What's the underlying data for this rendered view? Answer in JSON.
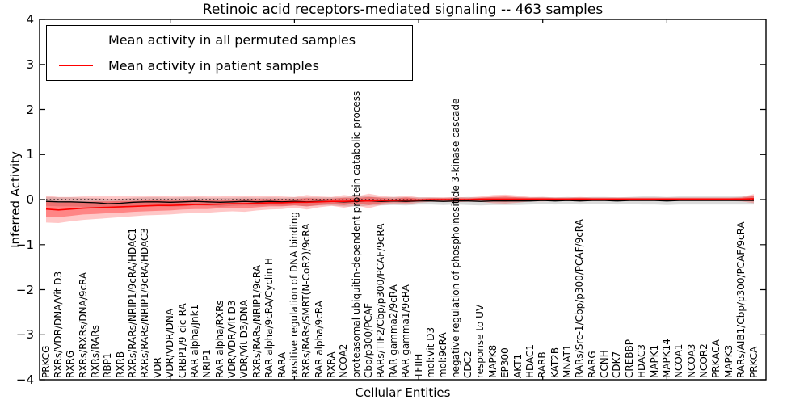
{
  "title": "Retinoic acid receptors-mediated signaling -- 463 samples",
  "axes": {
    "ylabel": "Inferred Activity",
    "xlabel": "Cellular Entities",
    "y_ticks": [
      "4",
      "3",
      "2",
      "1",
      "0",
      "−1",
      "−2",
      "−3",
      "−4"
    ],
    "y_tick_values": [
      4,
      3,
      2,
      1,
      0,
      -1,
      -2,
      -3,
      -4
    ],
    "ylim": [
      -4,
      4
    ]
  },
  "legend": {
    "items": [
      {
        "label": "Mean activity in all permuted samples",
        "color": "#000000"
      },
      {
        "label": "Mean activity in patient samples",
        "color": "#ff0000"
      }
    ],
    "position": "upper left"
  },
  "colors": {
    "permuted_line": "#000000",
    "patient_line": "#ff0000",
    "permuted_band": "#000000",
    "patient_band": "#ff0000",
    "zero_line": "#000000",
    "frame": "#000000"
  },
  "chart_data": {
    "type": "line",
    "title": "Retinoic acid receptors-mediated signaling -- 463 samples",
    "xlabel": "Cellular Entities",
    "ylabel": "Inferred Activity",
    "ylim": [
      -4,
      4
    ],
    "grid": false,
    "legend_position": "upper left",
    "zero_line_dotted": true,
    "categories": [
      "PRKCG",
      "RXRs/VDR/DNA/Vit D3",
      "RXRG",
      "RXRs/RXRs/DNA/9cRA",
      "RXRs/RARs",
      "RBP1",
      "RXRB",
      "RXRs/RARs/NRIP1/9cRA/HDAC1",
      "RXRs/RARs/NRIP1/9cRA/HDAC3",
      "VDR",
      "VDR/VDR/DNA",
      "CRBP1/9-cic-RA",
      "RAR alpha/Jnk1",
      "NRIP1",
      "RAR alpha/RXRs",
      "VDR/VDR/Vit D3",
      "VDR/Vit D3/DNA",
      "RXRs/RARs/NRIP1/9cRA",
      "RAR alpha/9cRA/Cyclin H",
      "RARA",
      "positive regulation of DNA binding",
      "RXRs/RARs/SMRT(N-CoR2)/9cRA",
      "RAR alpha/9cRA",
      "RXRA",
      "NCOA2",
      "proteasomal ubiquitin-dependent protein catabolic process",
      "Cbp/p300/PCAF",
      "RARs/TIF2/Cbp/p300/PCAF/9cRA",
      "RAR gamma2/9cRA",
      "RAR gamma1/9cRA",
      "TFIIH",
      "mol:Vit D3",
      "mol:9cRA",
      "negative regulation of phosphoinositide 3-kinase cascade",
      "CDC2",
      "response to UV",
      "MAPK8",
      "EP300",
      "AKT1",
      "HDAC1",
      "RARB",
      "KAT2B",
      "MNAT1",
      "RARs/Src-1/Cbp/p300/PCAF/9cRA",
      "RARG",
      "CCNH",
      "CDK7",
      "CREBBP",
      "HDAC3",
      "MAPK1",
      "MAPK14",
      "NCOA1",
      "NCOA3",
      "NCOR2",
      "PRKACA",
      "MAPK3",
      "RARs/AIB1/Cbp/p300/PCAF/9cRA",
      "PRKCA"
    ],
    "series": [
      {
        "name": "Mean activity in all permuted samples",
        "color": "#000000",
        "values": [
          -0.04,
          -0.05,
          -0.05,
          -0.06,
          -0.07,
          -0.09,
          -0.08,
          -0.06,
          -0.05,
          -0.05,
          -0.06,
          -0.05,
          -0.04,
          -0.05,
          -0.06,
          -0.05,
          -0.04,
          -0.05,
          -0.04,
          -0.05,
          -0.04,
          -0.05,
          -0.04,
          -0.04,
          -0.05,
          -0.04,
          -0.03,
          -0.04,
          -0.03,
          -0.04,
          -0.03,
          -0.03,
          -0.04,
          -0.03,
          -0.03,
          -0.04,
          -0.03,
          -0.03,
          -0.03,
          -0.03,
          -0.02,
          -0.03,
          -0.02,
          -0.03,
          -0.02,
          -0.02,
          -0.03,
          -0.02,
          -0.02,
          -0.02,
          -0.03,
          -0.02,
          -0.02,
          -0.02,
          -0.02,
          -0.02,
          -0.02,
          -0.02
        ]
      },
      {
        "name": "Mean activity in patient samples",
        "color": "#ff0000",
        "values": [
          -0.21,
          -0.23,
          -0.21,
          -0.19,
          -0.18,
          -0.17,
          -0.16,
          -0.15,
          -0.14,
          -0.13,
          -0.13,
          -0.12,
          -0.11,
          -0.11,
          -0.1,
          -0.09,
          -0.09,
          -0.08,
          -0.07,
          -0.07,
          -0.06,
          -0.06,
          -0.05,
          -0.04,
          -0.04,
          -0.03,
          -0.03,
          -0.02,
          -0.02,
          -0.01,
          -0.01,
          0.0,
          0.0,
          0.0,
          0.0,
          0.01,
          0.01,
          0.01,
          0.01,
          0.01,
          0.01,
          0.01,
          0.01,
          0.01,
          0.01,
          0.01,
          0.01,
          0.01,
          0.01,
          0.01,
          0.01,
          0.01,
          0.01,
          0.01,
          0.01,
          0.01,
          0.01,
          0.02
        ]
      }
    ],
    "bands": [
      {
        "name": "permuted-samples-spread",
        "center_series": 0,
        "color": "#000000",
        "opacity": 0.14,
        "half_widths": [
          0.1,
          0.1,
          0.1,
          0.1,
          0.1,
          0.11,
          0.1,
          0.1,
          0.1,
          0.1,
          0.1,
          0.1,
          0.09,
          0.09,
          0.1,
          0.09,
          0.09,
          0.09,
          0.09,
          0.09,
          0.09,
          0.1,
          0.09,
          0.09,
          0.1,
          0.12,
          0.1,
          0.09,
          0.09,
          0.09,
          0.08,
          0.08,
          0.08,
          0.08,
          0.09,
          0.09,
          0.09,
          0.09,
          0.09,
          0.08,
          0.08,
          0.08,
          0.08,
          0.08,
          0.08,
          0.08,
          0.08,
          0.08,
          0.09,
          0.09,
          0.09,
          0.09,
          0.09,
          0.09,
          0.09,
          0.09,
          0.09,
          0.09
        ]
      },
      {
        "name": "patient-samples-spread-outer",
        "center_series": 1,
        "color": "#ff0000",
        "opacity": 0.22,
        "half_widths": [
          0.3,
          0.29,
          0.27,
          0.26,
          0.25,
          0.24,
          0.23,
          0.22,
          0.21,
          0.21,
          0.2,
          0.19,
          0.19,
          0.18,
          0.17,
          0.17,
          0.18,
          0.16,
          0.15,
          0.14,
          0.12,
          0.16,
          0.12,
          0.1,
          0.14,
          0.1,
          0.16,
          0.1,
          0.08,
          0.1,
          0.06,
          0.05,
          0.05,
          0.06,
          0.05,
          0.06,
          0.09,
          0.1,
          0.08,
          0.05,
          0.05,
          0.04,
          0.04,
          0.05,
          0.04,
          0.04,
          0.04,
          0.04,
          0.04,
          0.04,
          0.04,
          0.04,
          0.04,
          0.04,
          0.04,
          0.04,
          0.05,
          0.1
        ]
      },
      {
        "name": "patient-samples-spread-inner",
        "center_series": 1,
        "color": "#ff0000",
        "opacity": 0.33,
        "half_widths": [
          0.17,
          0.16,
          0.15,
          0.14,
          0.14,
          0.13,
          0.13,
          0.12,
          0.12,
          0.12,
          0.11,
          0.1,
          0.1,
          0.1,
          0.09,
          0.09,
          0.1,
          0.09,
          0.08,
          0.08,
          0.07,
          0.09,
          0.07,
          0.06,
          0.08,
          0.06,
          0.09,
          0.06,
          0.04,
          0.06,
          0.03,
          0.03,
          0.03,
          0.03,
          0.03,
          0.03,
          0.05,
          0.06,
          0.04,
          0.03,
          0.03,
          0.02,
          0.02,
          0.03,
          0.02,
          0.02,
          0.02,
          0.02,
          0.02,
          0.02,
          0.02,
          0.02,
          0.02,
          0.02,
          0.02,
          0.02,
          0.03,
          0.06
        ]
      }
    ],
    "x_major_tick_indices": [
      10,
      20,
      30,
      40,
      50
    ]
  }
}
